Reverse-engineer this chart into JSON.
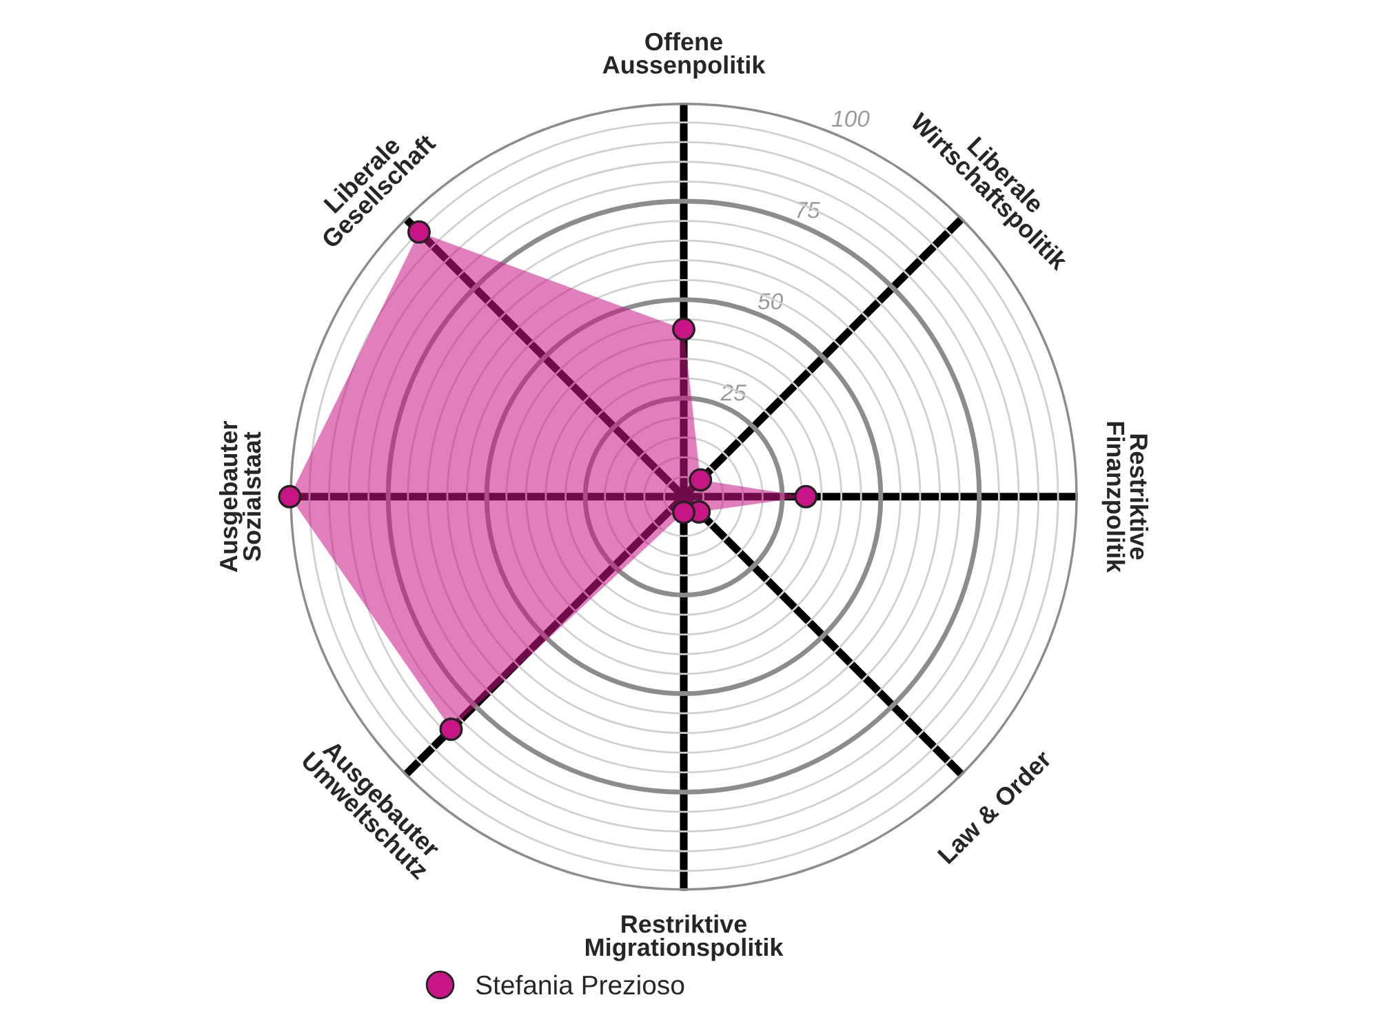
{
  "chart_data": {
    "type": "radar",
    "categories": [
      "Offene Aussenpolitik",
      "Liberale Wirtschaftspolitik",
      "Restriktive Finanzpolitik",
      "Law & Order",
      "Restriktive Migrationspolitik",
      "Ausgebauter Umweltschutz",
      "Ausgebauter Sozialstaat",
      "Liberale Gesellschaft"
    ],
    "series": [
      {
        "name": "Stefania Prezioso",
        "color": "#c71585",
        "values": [
          42.5,
          6,
          31,
          5.5,
          4,
          83.5,
          100,
          95
        ]
      }
    ],
    "ylim": [
      0,
      100
    ],
    "yticks": [
      25,
      50,
      75,
      100
    ],
    "grid": true,
    "marker": "circle",
    "legend": "bottom"
  }
}
